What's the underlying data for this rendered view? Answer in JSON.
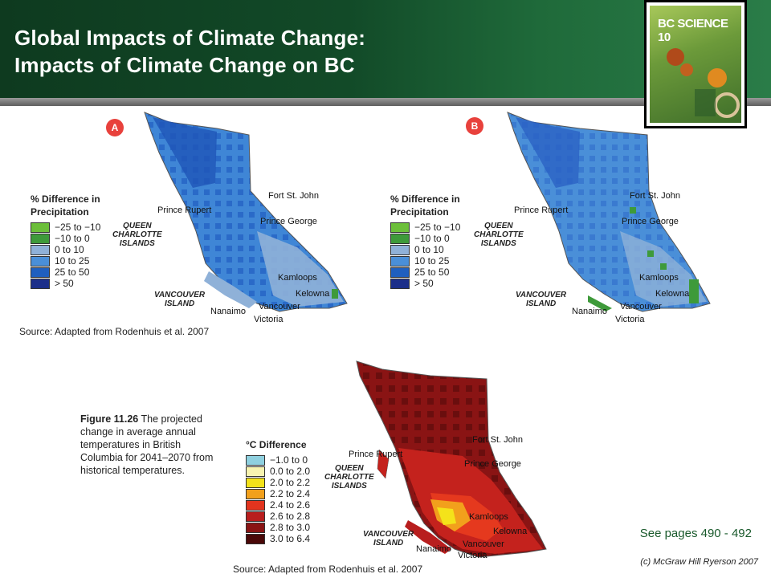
{
  "slide": {
    "title_line1": "Global Impacts of Climate Change:",
    "title_line2": "Impacts of Climate Change on BC",
    "book_cover_title": "BC SCIENCE 10",
    "see_pages": "See pages 490 - 492",
    "copyright": "(c) McGraw Hill Ryerson 2007"
  },
  "maps": {
    "a_label": "A",
    "b_label": "B",
    "precip_legend_title": "% Difference in Precipitation",
    "precip_legend": [
      {
        "label": "−25 to −10",
        "color": "#6cbf3a"
      },
      {
        "label": "−10 to 0",
        "color": "#3e9a3a"
      },
      {
        "label": "0 to 10",
        "color": "#8fb1d8"
      },
      {
        "label": "10 to 25",
        "color": "#4a8fd8"
      },
      {
        "label": "25 to 50",
        "color": "#1f5fbf"
      },
      {
        "label": "> 50",
        "color": "#1c2f8a"
      }
    ],
    "temp_legend_title": "°C Difference",
    "temp_legend": [
      {
        "label": "−1.0 to 0",
        "color": "#8fd0df"
      },
      {
        "label": "0.0 to 2.0",
        "color": "#f7f3b0"
      },
      {
        "label": "2.0 to 2.2",
        "color": "#f4e21a"
      },
      {
        "label": "2.2 to 2.4",
        "color": "#f2a01c"
      },
      {
        "label": "2.4 to 2.6",
        "color": "#e2341e"
      },
      {
        "label": "2.6 to 2.8",
        "color": "#b81e1e"
      },
      {
        "label": "2.8 to 3.0",
        "color": "#8a1414"
      },
      {
        "label": "3.0 to 6.4",
        "color": "#4a0808"
      }
    ],
    "source": "Source: Adapted from Rodenhuis et al. 2007",
    "cities": {
      "fort_st_john": "Fort St. John",
      "prince_rupert": "Prince Rupert",
      "prince_george": "Prince George",
      "kamloops": "Kamloops",
      "kelowna": "Kelowna",
      "vancouver": "Vancouver",
      "nanaimo": "Nanaimo",
      "victoria": "Victoria"
    },
    "islands": {
      "qci_line1": "QUEEN",
      "qci_line2": "CHARLOTTE",
      "qci_line3": "ISLANDS",
      "vi_line1": "VANCOUVER",
      "vi_line2": "ISLAND"
    },
    "caption_bold": "Figure 11.26",
    "caption_text": "The projected change in average annual temperatures in British Columbia for 2041–2070 from historical temperatures."
  }
}
